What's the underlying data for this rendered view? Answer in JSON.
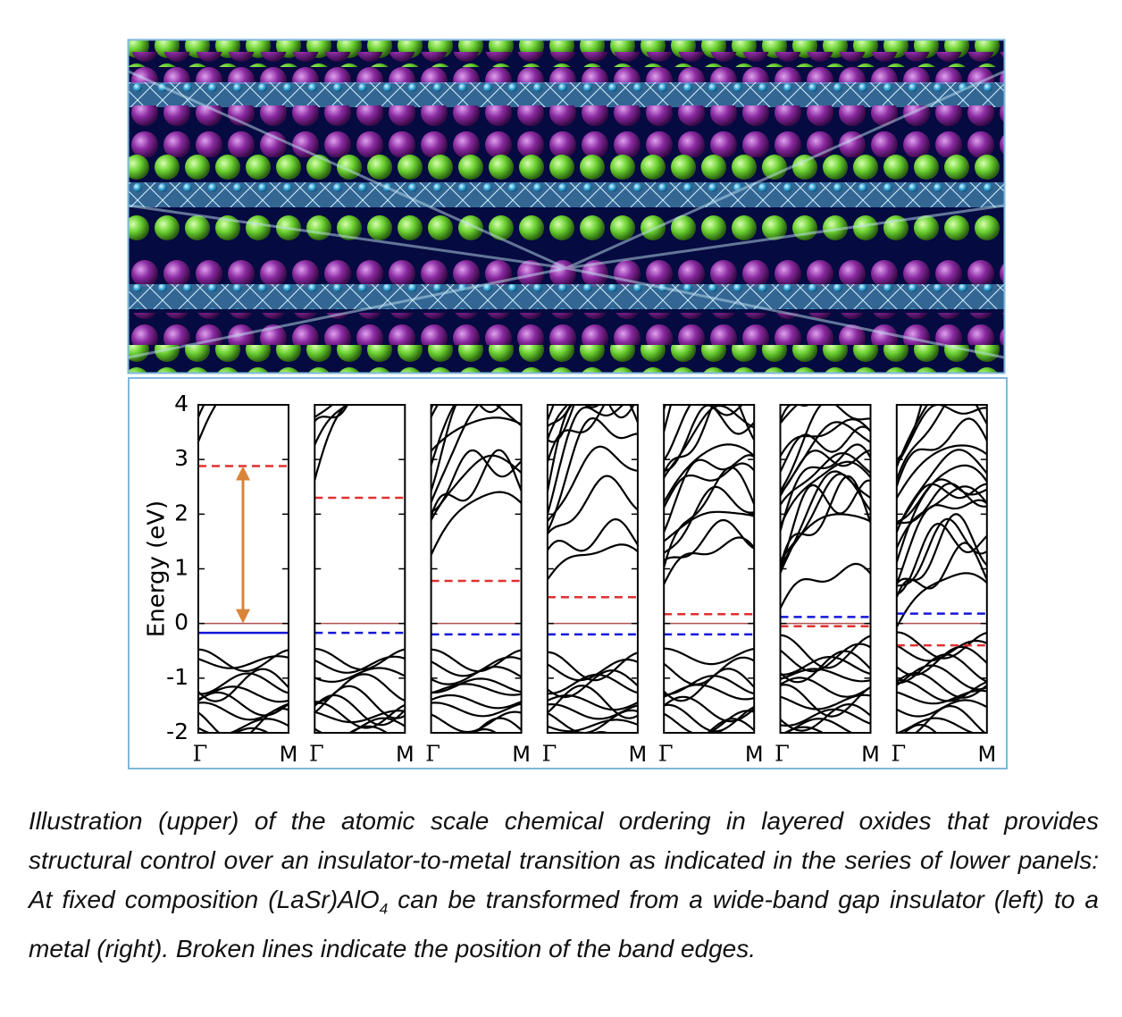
{
  "figure": {
    "bands": {
      "ylabel": "Energy (eV)",
      "ylim": [
        -2,
        4
      ],
      "yticks": [
        -2,
        -1,
        0,
        1,
        2,
        3,
        4
      ],
      "kpoints": [
        "Γ",
        "M"
      ],
      "fermi_color": "#b05050",
      "cbm_color": "#e03030",
      "vbm_color": "#1414dc",
      "arrow_color": "#d98438",
      "panels": [
        {
          "cbm": 2.88,
          "vbm": -0.17,
          "vbm_style": "solid"
        },
        {
          "cbm": 2.3,
          "vbm": -0.17,
          "vbm_style": "dashed"
        },
        {
          "cbm": 0.78,
          "vbm": -0.2,
          "vbm_style": "dashed"
        },
        {
          "cbm": 0.48,
          "vbm": -0.2,
          "vbm_style": "dashed"
        },
        {
          "cbm": 0.17,
          "vbm": -0.2,
          "vbm_style": "dashed"
        },
        {
          "cbm": -0.05,
          "vbm": 0.12,
          "vbm_style": "dashed"
        },
        {
          "cbm": -0.4,
          "vbm": 0.18,
          "vbm_style": "dashed"
        }
      ]
    },
    "caption": {
      "before": "Illustration (upper) of the atomic scale chemical ordering in layered oxides that provides structural control over an insulator-to-metal transition as indicated in the series of lower panels: At fixed composition (LaSr)AlO",
      "subscript": "4",
      "after": " can be transformed from a wide-band gap insulator (left) to a metal (right). Broken lines indicate the position of the band edges."
    }
  }
}
